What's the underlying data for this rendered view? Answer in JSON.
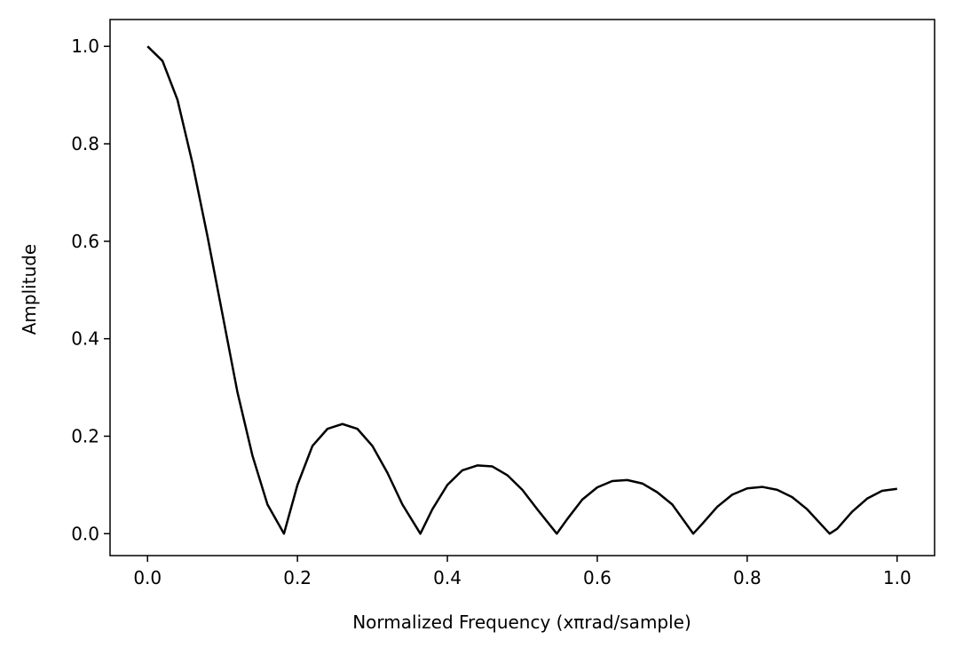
{
  "chart_data": {
    "type": "line",
    "title": "",
    "xlabel": "Normalized Frequency (xπrad/sample)",
    "ylabel": "Amplitude",
    "xlim": [
      -0.05,
      1.05
    ],
    "ylim": [
      -0.045,
      1.055
    ],
    "xticks": [
      0.0,
      0.2,
      0.4,
      0.6,
      0.8,
      1.0
    ],
    "xtick_labels": [
      "0.0",
      "0.2",
      "0.4",
      "0.6",
      "0.8",
      "1.0"
    ],
    "yticks": [
      0.0,
      0.2,
      0.4,
      0.6,
      0.8,
      1.0
    ],
    "ytick_labels": [
      "0.0",
      "0.2",
      "0.4",
      "0.6",
      "0.8",
      "1.0"
    ],
    "grid": false,
    "line_color": "#000000",
    "series": [
      {
        "x": [
          0.0,
          0.02,
          0.04,
          0.06,
          0.08,
          0.1,
          0.12,
          0.14,
          0.16,
          0.182,
          0.2,
          0.22,
          0.24,
          0.26,
          0.28,
          0.3,
          0.32,
          0.34,
          0.364,
          0.38,
          0.4,
          0.42,
          0.44,
          0.46,
          0.48,
          0.5,
          0.52,
          0.546,
          0.56,
          0.58,
          0.6,
          0.62,
          0.64,
          0.66,
          0.68,
          0.7,
          0.728,
          0.74,
          0.76,
          0.78,
          0.8,
          0.82,
          0.84,
          0.86,
          0.88,
          0.91,
          0.92,
          0.94,
          0.96,
          0.98,
          1.0
        ],
        "values": [
          1.0,
          0.97,
          0.89,
          0.76,
          0.61,
          0.45,
          0.29,
          0.16,
          0.06,
          0.0,
          0.1,
          0.18,
          0.215,
          0.225,
          0.215,
          0.18,
          0.125,
          0.06,
          0.0,
          0.05,
          0.1,
          0.13,
          0.14,
          0.138,
          0.12,
          0.09,
          0.05,
          0.0,
          0.03,
          0.07,
          0.095,
          0.108,
          0.11,
          0.103,
          0.085,
          0.06,
          0.0,
          0.02,
          0.055,
          0.08,
          0.093,
          0.096,
          0.09,
          0.075,
          0.05,
          0.0,
          0.01,
          0.045,
          0.072,
          0.088,
          0.092
        ]
      }
    ]
  }
}
